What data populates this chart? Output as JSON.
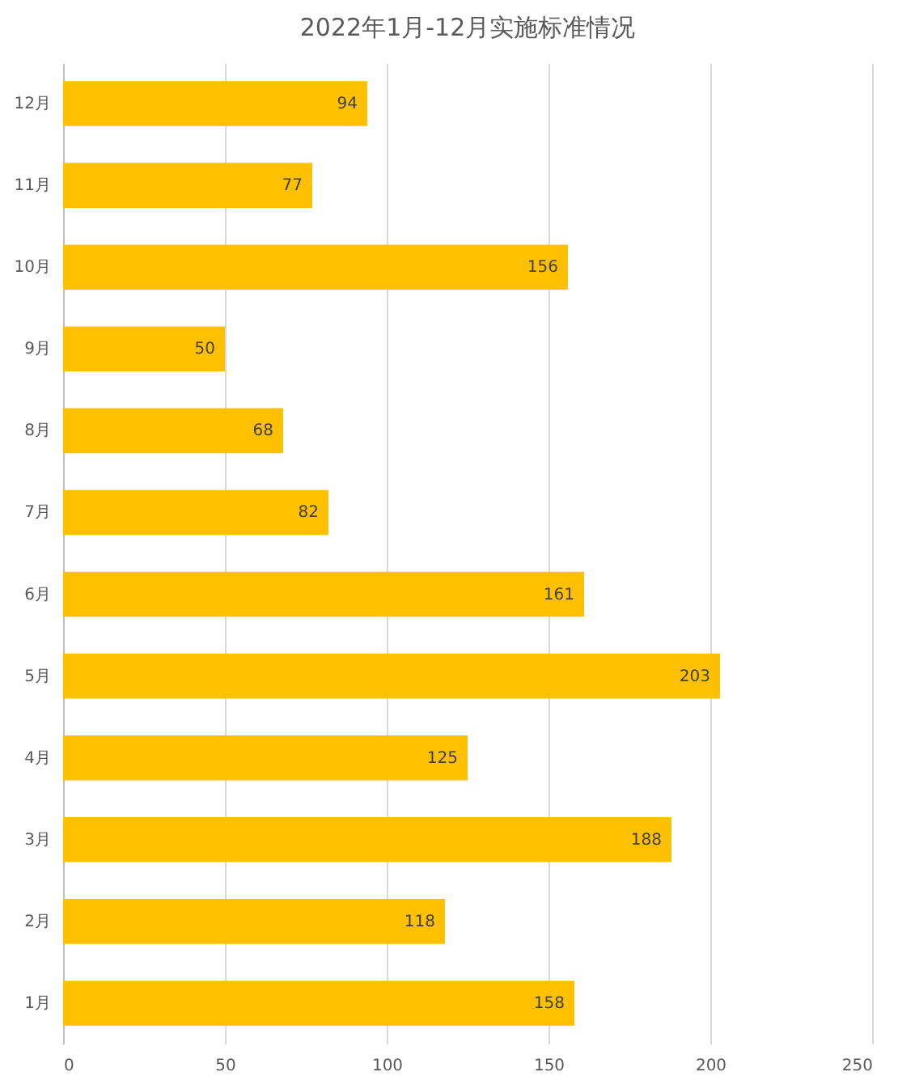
{
  "chart_data": {
    "type": "bar",
    "title": "2022年1月-12月实施标准情况",
    "orientation": "horizontal",
    "categories": [
      "12月",
      "11月",
      "10月",
      "9月",
      "8月",
      "7月",
      "6月",
      "5月",
      "4月",
      "3月",
      "2月",
      "1月"
    ],
    "values": [
      94,
      77,
      156,
      50,
      68,
      82,
      161,
      203,
      125,
      188,
      118,
      158
    ],
    "color": "#ffc000",
    "xlim": [
      0,
      250
    ],
    "xticks": [
      0,
      50,
      100,
      150,
      200,
      250
    ],
    "grid": "x",
    "data_labels": true
  }
}
